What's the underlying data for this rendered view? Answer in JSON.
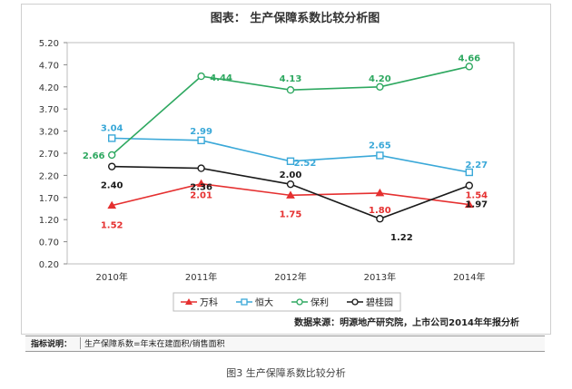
{
  "chart_data": {
    "type": "line",
    "title": "图表： 生产保障系数比较分析图",
    "categories": [
      "2010年",
      "2011年",
      "2012年",
      "2013年",
      "2014年"
    ],
    "y_ticks": [
      "5.20",
      "4.70",
      "4.20",
      "3.70",
      "3.20",
      "2.70",
      "2.20",
      "1.70",
      "1.20",
      "0.70",
      "0.20"
    ],
    "ylim": [
      0.2,
      5.2
    ],
    "grid": false,
    "legend_position": "bottom",
    "series": [
      {
        "name": "万科",
        "color": "#e53030",
        "marker": "triangle",
        "values": [
          1.52,
          2.01,
          1.75,
          1.8,
          1.54
        ],
        "labels": [
          "1.52",
          "2.01",
          "1.75",
          "1.80",
          "1.54"
        ]
      },
      {
        "name": "恒大",
        "color": "#3aa8d8",
        "marker": "square",
        "values": [
          3.04,
          2.99,
          2.52,
          2.65,
          2.27
        ],
        "labels": [
          "3.04",
          "2.99",
          "2.52",
          "2.65",
          "2.27"
        ]
      },
      {
        "name": "保利",
        "color": "#2ea860",
        "marker": "circle",
        "values": [
          2.66,
          4.44,
          4.13,
          4.2,
          4.66
        ],
        "labels": [
          "2.66",
          "4.44",
          "4.13",
          "4.20",
          "4.66"
        ]
      },
      {
        "name": "碧桂园",
        "color": "#1a1a1a",
        "marker": "circle",
        "values": [
          2.4,
          2.36,
          2.0,
          1.22,
          1.97
        ],
        "labels": [
          "2.40",
          "2.36",
          "2.00",
          "1.22",
          "1.97"
        ]
      }
    ],
    "source": "数据来源：明源地产研究院，上市公司2014年年报分析"
  },
  "note": {
    "label": "指标说明：",
    "text": "生产保障系数=年末在建面积/销售面积"
  },
  "caption": "图3 生产保障系数比较分析"
}
